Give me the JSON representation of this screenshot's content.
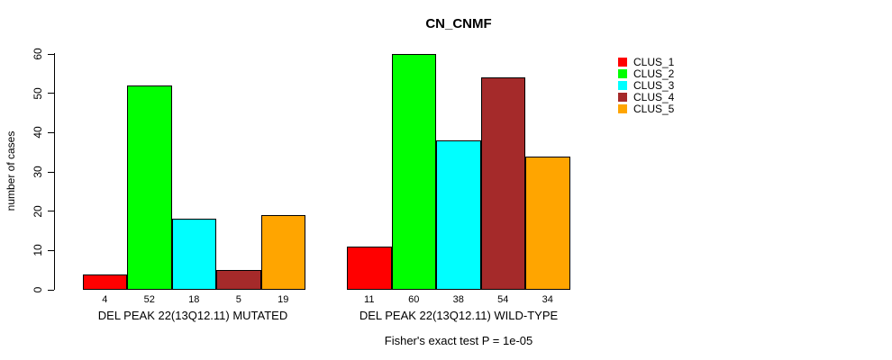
{
  "chart_data": {
    "type": "bar",
    "title": "CN_CNMF",
    "ylabel": "number of cases",
    "xlabel": "",
    "ylim": [
      0,
      60
    ],
    "yticks": [
      0,
      10,
      20,
      30,
      40,
      50,
      60
    ],
    "grid": false,
    "legend_position": "right",
    "series": [
      {
        "name": "CLUS_1",
        "color": "#FF0000"
      },
      {
        "name": "CLUS_2",
        "color": "#00FF00"
      },
      {
        "name": "CLUS_3",
        "color": "#00FFFF"
      },
      {
        "name": "CLUS_4",
        "color": "#A52A2A"
      },
      {
        "name": "CLUS_5",
        "color": "#FFA500"
      }
    ],
    "groups": [
      {
        "label": "DEL PEAK 22(13Q12.11) MUTATED",
        "values": [
          4,
          52,
          18,
          5,
          19
        ]
      },
      {
        "label": "DEL PEAK 22(13Q12.11) WILD-TYPE",
        "values": [
          11,
          60,
          38,
          54,
          34
        ]
      }
    ],
    "bar_value_labels": [
      [
        4,
        52,
        18,
        5,
        19
      ],
      [
        11,
        60,
        38,
        54,
        34
      ]
    ],
    "annotation": "Fisher's exact test P = 1e-05"
  }
}
